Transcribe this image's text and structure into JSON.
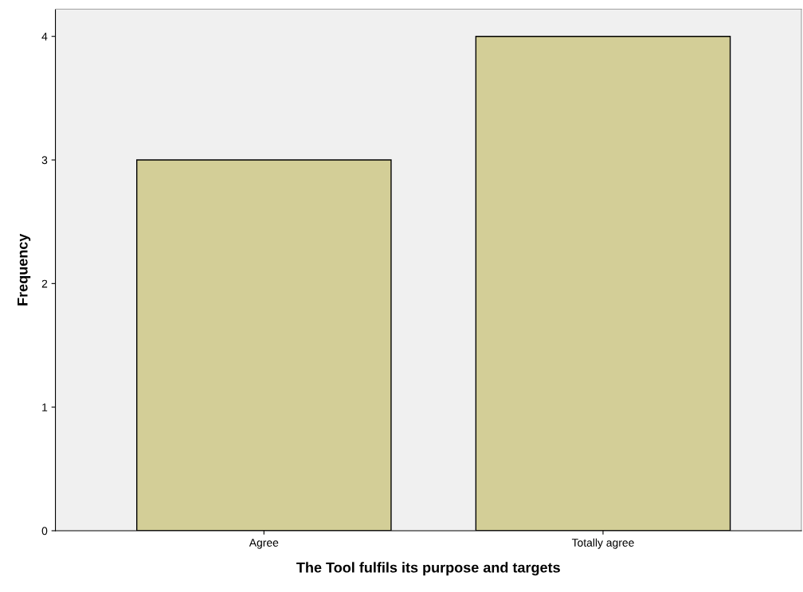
{
  "chart_data": {
    "type": "bar",
    "xlabel": "The Tool fulfils its purpose and targets",
    "ylabel": "Frequency",
    "categories": [
      "Agree",
      "Totally agree"
    ],
    "values": [
      3,
      4
    ],
    "color": "#d3ce97",
    "ylim": [
      0,
      4.22
    ],
    "yticks": [
      0,
      1,
      2,
      3,
      4
    ],
    "grid": false,
    "legend": false
  }
}
